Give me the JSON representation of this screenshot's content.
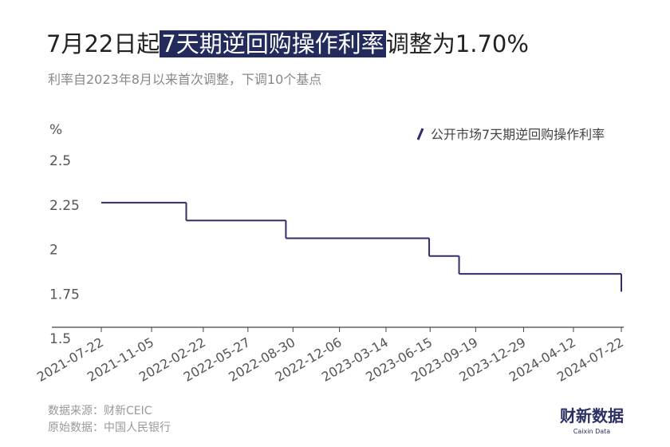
{
  "chart_data": {
    "type": "line",
    "step": "post",
    "title": {
      "before": "7月22日起",
      "highlight": "7天期逆回购操作利率",
      "after": "调整为1.70%"
    },
    "subtitle": "利率自2023年8月以来首次调整，下调10个基点",
    "y_label": "%",
    "x": [
      "2021-07-22",
      "2022-01-17",
      "2022-08-15",
      "2023-06-13",
      "2023-08-15",
      "2024-07-22"
    ],
    "series": [
      {
        "name": "公开市场7天期逆回购操作利率",
        "color": "#2f2d6e",
        "values": [
          2.2,
          2.1,
          2.0,
          1.9,
          1.8,
          1.7
        ]
      }
    ],
    "xlim": [
      "2021-07-22",
      "2024-07-22"
    ],
    "xticks": [
      "2021-07-22",
      "2021-11-05",
      "2022-02-22",
      "2022-05-27",
      "2022-08-30",
      "2022-12-06",
      "2023-03-14",
      "2023-06-15",
      "2023-09-19",
      "2023-12-29",
      "2024-04-12",
      "2024-07-22"
    ],
    "ylim": [
      1.5,
      2.5
    ],
    "yticks": [
      1.5,
      1.75,
      2,
      2.25,
      2.5
    ],
    "source": [
      "数据来源：财新CEIC",
      "原始数据：中国人民银行"
    ],
    "logo": {
      "name": "财新数据",
      "sub": "Caixin Data"
    }
  }
}
